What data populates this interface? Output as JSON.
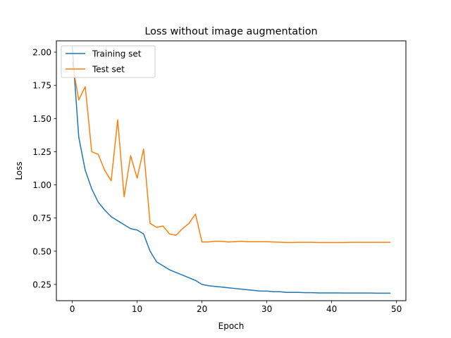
{
  "chart_data": {
    "type": "line",
    "title": "Loss without image augmentation",
    "xlabel": "Epoch",
    "ylabel": "Loss",
    "xlim": [
      -2.45,
      51.45
    ],
    "ylim": [
      0.1275,
      2.085
    ],
    "xticks": [
      0,
      10,
      20,
      30,
      40,
      50
    ],
    "xtick_labels": [
      "0",
      "10",
      "20",
      "30",
      "40",
      "50"
    ],
    "yticks": [
      0.25,
      0.5,
      0.75,
      1.0,
      1.25,
      1.5,
      1.75,
      2.0
    ],
    "ytick_labels": [
      "0.25",
      "0.50",
      "0.75",
      "1.00",
      "1.25",
      "1.50",
      "1.75",
      "2.00"
    ],
    "grid": false,
    "legend_position": "top-left",
    "x": [
      0,
      1,
      2,
      3,
      4,
      5,
      6,
      7,
      8,
      9,
      10,
      11,
      12,
      13,
      14,
      15,
      16,
      17,
      18,
      19,
      20,
      21,
      22,
      23,
      24,
      25,
      26,
      27,
      28,
      29,
      30,
      31,
      32,
      33,
      34,
      35,
      36,
      37,
      38,
      39,
      40,
      41,
      42,
      43,
      44,
      45,
      46,
      47,
      48,
      49
    ],
    "series": [
      {
        "name": "Training set",
        "color": "#1f77b4",
        "values": [
          2.04,
          1.36,
          1.11,
          0.97,
          0.87,
          0.81,
          0.76,
          0.73,
          0.7,
          0.67,
          0.66,
          0.63,
          0.5,
          0.42,
          0.39,
          0.36,
          0.34,
          0.32,
          0.3,
          0.28,
          0.25,
          0.24,
          0.235,
          0.23,
          0.225,
          0.22,
          0.215,
          0.21,
          0.205,
          0.2,
          0.2,
          0.195,
          0.195,
          0.19,
          0.19,
          0.19,
          0.188,
          0.188,
          0.186,
          0.186,
          0.186,
          0.186,
          0.185,
          0.185,
          0.185,
          0.185,
          0.185,
          0.184,
          0.184,
          0.184
        ]
      },
      {
        "name": "Test set",
        "color": "#ff7f0e",
        "values": [
          1.92,
          1.64,
          1.74,
          1.25,
          1.23,
          1.11,
          1.03,
          1.49,
          0.91,
          1.22,
          1.05,
          1.27,
          0.71,
          0.68,
          0.69,
          0.63,
          0.62,
          0.67,
          0.71,
          0.78,
          0.57,
          0.57,
          0.575,
          0.575,
          0.57,
          0.572,
          0.575,
          0.572,
          0.572,
          0.572,
          0.572,
          0.57,
          0.568,
          0.566,
          0.566,
          0.567,
          0.567,
          0.567,
          0.566,
          0.566,
          0.566,
          0.566,
          0.566,
          0.567,
          0.567,
          0.567,
          0.567,
          0.567,
          0.567,
          0.567
        ]
      }
    ]
  }
}
